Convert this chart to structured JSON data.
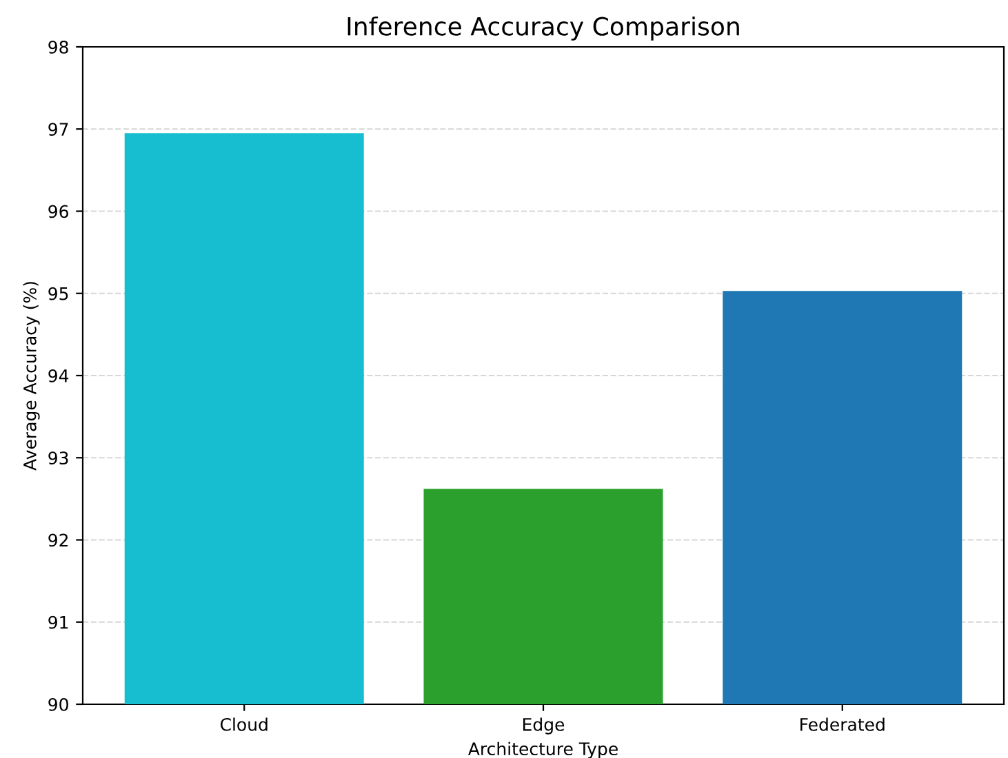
{
  "chart_data": {
    "type": "bar",
    "title": "Inference Accuracy Comparison",
    "xlabel": "Architecture Type",
    "ylabel": "Average Accuracy (%)",
    "categories": [
      "Cloud",
      "Edge",
      "Federated"
    ],
    "values": [
      96.95,
      92.62,
      95.03
    ],
    "colors": [
      "#17becf",
      "#2ca02c",
      "#1f77b4"
    ],
    "ylim": [
      90,
      98
    ],
    "yticks": [
      90,
      91,
      92,
      93,
      94,
      95,
      96,
      97,
      98
    ],
    "grid": "y"
  }
}
